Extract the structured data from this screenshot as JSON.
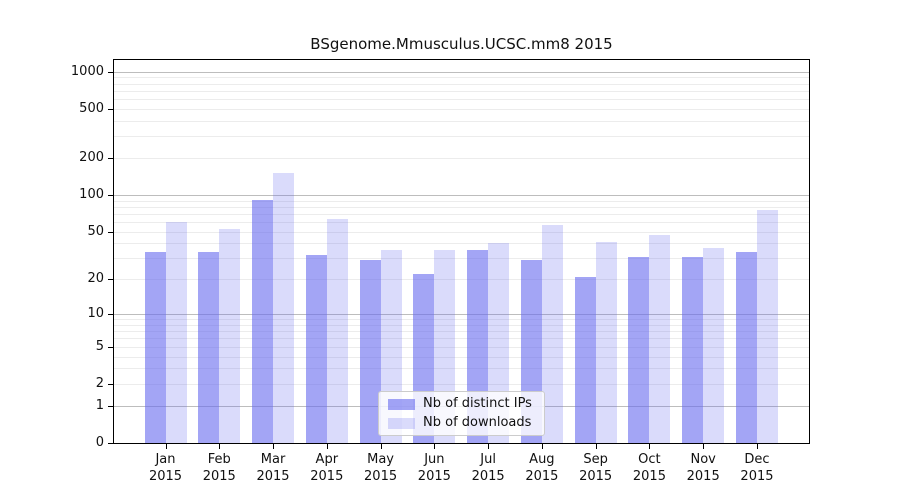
{
  "chart_data": {
    "type": "bar",
    "title": "BSgenome.Mmusculus.UCSC.mm8 2015",
    "year_label": "2015",
    "categories": [
      "Jan",
      "Feb",
      "Mar",
      "Apr",
      "May",
      "Jun",
      "Jul",
      "Aug",
      "Sep",
      "Oct",
      "Nov",
      "Dec"
    ],
    "series": [
      {
        "name": "Nb of distinct IPs",
        "color_rgba": "rgba(102,105,238,0.6)",
        "base_color_hex": "#6669ee",
        "values": [
          34,
          34,
          91,
          32,
          29,
          22,
          35,
          29,
          21,
          31,
          31,
          34
        ]
      },
      {
        "name": "Nb of downloads",
        "color_rgba": "rgba(102,105,238,0.24)",
        "base_color_hex": "#6669ee",
        "values": [
          60,
          53,
          150,
          63,
          35,
          35,
          40,
          57,
          41,
          47,
          37,
          75
        ]
      }
    ],
    "y_axis": {
      "scale": "log10(1+v)",
      "ticks": [
        0,
        1,
        2,
        5,
        10,
        20,
        50,
        100,
        200,
        500,
        1000
      ],
      "range": [
        0,
        1000
      ]
    },
    "grid": {
      "horizontal": true,
      "major_at": [
        1,
        10,
        100,
        1000
      ],
      "minor": "2-9 per decade",
      "major_color": "#bdbdbd",
      "minor_color": "#ececec"
    },
    "legend": {
      "position": "inside-bottom-center",
      "entries": [
        "Nb of distinct IPs",
        "Nb of downloads"
      ]
    }
  }
}
